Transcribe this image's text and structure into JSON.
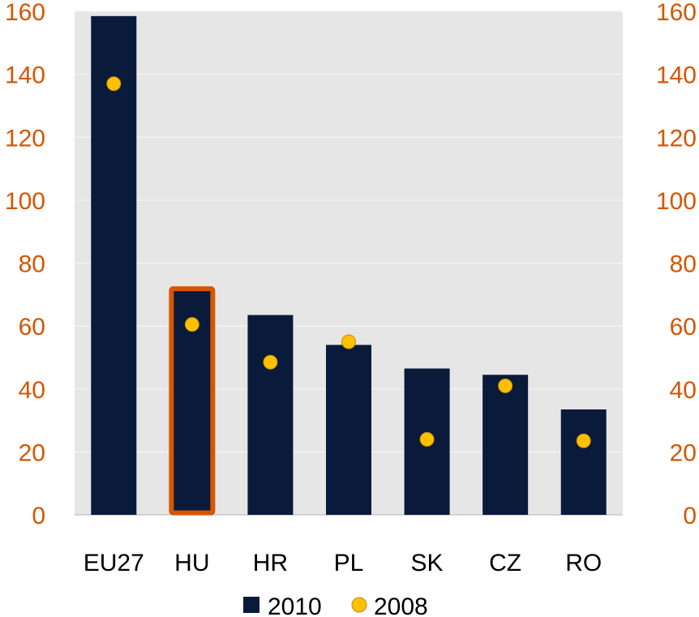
{
  "chart_data": {
    "type": "bar",
    "categories": [
      "EU27",
      "HU",
      "HR",
      "PL",
      "SK",
      "CZ",
      "RO"
    ],
    "series": [
      {
        "name": "2010",
        "kind": "bar",
        "values": [
          158.5,
          72.5,
          63.5,
          54,
          46.5,
          44.5,
          33.5
        ],
        "color": "#0a1a3a"
      },
      {
        "name": "2008",
        "kind": "marker",
        "values": [
          137,
          60.5,
          48.5,
          55,
          24,
          41,
          23.5
        ],
        "color": "#ffc000",
        "stroke": "#c28f00"
      }
    ],
    "highlight": {
      "category": "HU",
      "color": "#d55600"
    },
    "ylim": [
      0,
      160
    ],
    "yticks": [
      0,
      20,
      40,
      60,
      80,
      100,
      120,
      140,
      160
    ],
    "ytick_labels": [
      "0",
      "20",
      "40",
      "60",
      "80",
      "100",
      "120",
      "140",
      "160"
    ],
    "tick_label_color": "#d55600",
    "plot_background": "#e6e6e6",
    "grid": true,
    "dual_axis_labels": true,
    "legend_position": "bottom"
  }
}
